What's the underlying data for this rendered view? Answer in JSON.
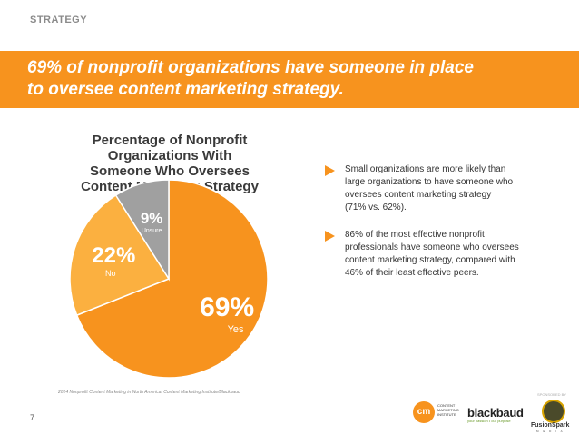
{
  "header": {
    "section_label": "STRATEGY",
    "headline_line1": "69% of nonprofit organizations have someone in place",
    "headline_line2": "to oversee content marketing strategy."
  },
  "chart_data": {
    "type": "pie",
    "title_lines": [
      "Percentage of Nonprofit",
      "Organizations With",
      "Someone Who Oversees",
      "Content Marketing Strategy"
    ],
    "slices": [
      {
        "label": "Yes",
        "value": 69,
        "display": "69%",
        "color": "#f7931e"
      },
      {
        "label": "No",
        "value": 22,
        "display": "22%",
        "color": "#fbb040"
      },
      {
        "label": "Unsure",
        "value": 9,
        "display": "9%",
        "color": "#a0a0a0"
      }
    ]
  },
  "bullets": [
    {
      "lines": [
        "Small organizations are more likely than",
        "large organizations to have someone who",
        "oversees content marketing strategy",
        "(71% vs. 62%)."
      ]
    },
    {
      "lines": [
        "86% of the most effective nonprofit",
        "professionals have someone who oversees",
        "content marketing strategy, compared with",
        "46% of their least effective peers."
      ]
    }
  ],
  "footer": {
    "source": "2014 Nonprofit Content Marketing in North America: Content Marketing Institute/Blackbaud",
    "page_number": "7",
    "sponsor_label": "SPONSORED BY",
    "cmi_mark": "cm",
    "cmi_text_lines": [
      "CONTENT",
      "MARKETING",
      "INSTITUTE"
    ],
    "blackbaud_name": "blackbaud",
    "blackbaud_tagline": "your passion • our purpose",
    "fusionspark_name": "FusionSpark",
    "fusionspark_sub": "M E D I A"
  }
}
